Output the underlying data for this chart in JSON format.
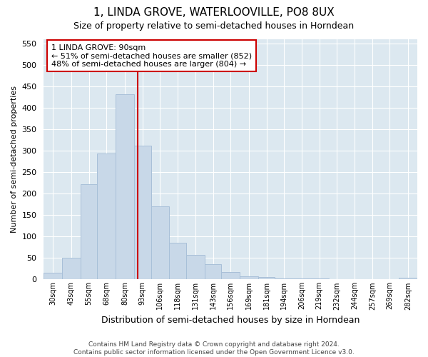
{
  "title": "1, LINDA GROVE, WATERLOOVILLE, PO8 8UX",
  "subtitle": "Size of property relative to semi-detached houses in Horndean",
  "xlabel": "Distribution of semi-detached houses by size in Horndean",
  "ylabel": "Number of semi-detached properties",
  "footer_line1": "Contains HM Land Registry data © Crown copyright and database right 2024.",
  "footer_line2": "Contains public sector information licensed under the Open Government Licence v3.0.",
  "annotation_title": "1 LINDA GROVE: 90sqm",
  "annotation_line1": "← 51% of semi-detached houses are smaller (852)",
  "annotation_line2": "48% of semi-detached houses are larger (804) →",
  "property_size": 90,
  "bar_color": "#c8d8e8",
  "bar_edgecolor": "#a8c0d8",
  "vline_color": "#cc0000",
  "annotation_box_edgecolor": "#cc0000",
  "categories": [
    "30sqm",
    "43sqm",
    "55sqm",
    "68sqm",
    "80sqm",
    "93sqm",
    "106sqm",
    "118sqm",
    "131sqm",
    "143sqm",
    "156sqm",
    "169sqm",
    "181sqm",
    "194sqm",
    "206sqm",
    "219sqm",
    "232sqm",
    "244sqm",
    "257sqm",
    "269sqm",
    "282sqm"
  ],
  "bin_edges": [
    23.5,
    36.5,
    49.5,
    61.5,
    74.5,
    87.5,
    99.5,
    112.5,
    124.5,
    137.5,
    149.5,
    162.5,
    175.5,
    187.5,
    200.5,
    212.5,
    225.5,
    237.5,
    250.5,
    262.5,
    275.5,
    288.5
  ],
  "values": [
    15,
    50,
    222,
    293,
    432,
    312,
    170,
    85,
    57,
    35,
    18,
    8,
    5,
    3,
    3,
    2,
    1,
    1,
    0,
    1,
    4
  ],
  "ylim": [
    0,
    560
  ],
  "yticks": [
    0,
    50,
    100,
    150,
    200,
    250,
    300,
    350,
    400,
    450,
    500,
    550
  ],
  "figure_bg": "#ffffff",
  "plot_bg_color": "#dce8f0"
}
